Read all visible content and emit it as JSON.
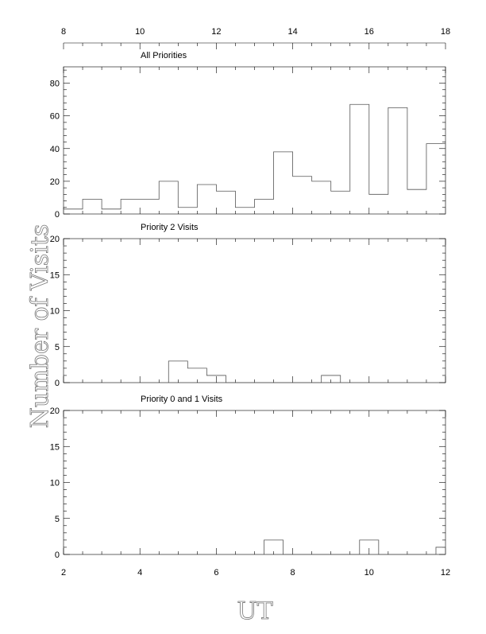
{
  "figure": {
    "ylabel": "Number of Visits",
    "xlabel": "UT"
  },
  "chart_data": [
    {
      "type": "bar",
      "title": "All Priorities",
      "bin_edges": [
        8.0,
        8.5,
        9.0,
        9.5,
        10.0,
        10.5,
        11.0,
        11.5,
        12.0,
        12.5,
        13.0,
        13.5,
        14.0,
        14.5,
        15.0,
        15.5,
        16.0,
        16.5,
        17.0,
        17.5,
        18.0
      ],
      "values": [
        3,
        9,
        3,
        9,
        9,
        20,
        4,
        18,
        14,
        4,
        9,
        38,
        23,
        20,
        14,
        67,
        12,
        65,
        15,
        43
      ],
      "xlim": [
        8,
        18
      ],
      "ylim": [
        0,
        90
      ],
      "x_ticks": [
        8,
        10,
        12,
        14,
        16,
        18
      ],
      "y_ticks": [
        0,
        20,
        40,
        60,
        80
      ],
      "x_tick_labels_position": "top"
    },
    {
      "type": "bar",
      "title": "Priority 2 Visits",
      "bin_edges": [
        4.75,
        5.25,
        5.75,
        6.25,
        6.75,
        7.25,
        7.75,
        8.25,
        8.75,
        9.25
      ],
      "values": [
        3,
        2,
        1,
        0,
        0,
        0,
        0,
        0,
        1
      ],
      "xlim": [
        2,
        12
      ],
      "ylim": [
        0,
        20
      ],
      "y_ticks": [
        0,
        5,
        10,
        15,
        20
      ]
    },
    {
      "type": "bar",
      "title": "Priority 0 and 1 Visits",
      "bin_edges": [
        7.25,
        7.75,
        8.25,
        8.75,
        9.25,
        9.75,
        10.25,
        10.75,
        11.25,
        11.75,
        12.0
      ],
      "values": [
        2,
        0,
        0,
        0,
        0,
        2,
        0,
        0,
        0,
        1
      ],
      "xlim": [
        2,
        12
      ],
      "ylim": [
        0,
        20
      ],
      "x_ticks": [
        2,
        4,
        6,
        8,
        10,
        12
      ],
      "y_ticks": [
        0,
        5,
        10,
        15,
        20
      ],
      "x_tick_labels_position": "bottom"
    }
  ]
}
